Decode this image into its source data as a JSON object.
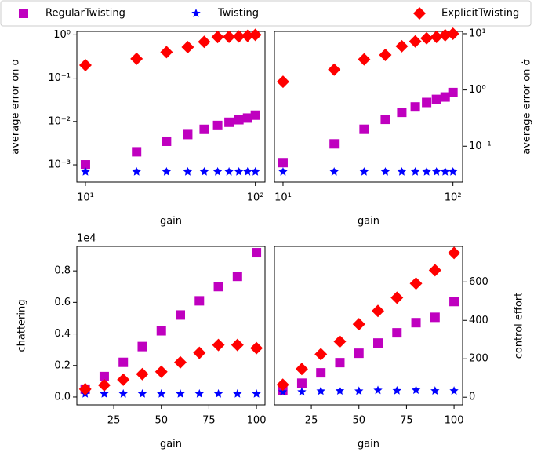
{
  "chart_data": [
    {
      "type": "scatter",
      "xlog": true,
      "ylog": true,
      "yaxis_side": "left",
      "x": [
        10,
        20,
        30,
        40,
        50,
        60,
        70,
        80,
        90,
        100
      ],
      "xlabel": "gain",
      "ylabel": "average error on σ",
      "xlim": [
        8.9,
        114
      ],
      "ylim": [
        0.0004,
        1.2
      ],
      "xticks": [
        {
          "value": 10,
          "label": "10¹"
        },
        {
          "value": 100,
          "label": "10²"
        }
      ],
      "yticks": [
        {
          "value": 0.001,
          "label": "10⁻³"
        },
        {
          "value": 0.01,
          "label": "10⁻²"
        },
        {
          "value": 0.1,
          "label": "10⁻¹"
        },
        {
          "value": 1,
          "label": "10⁰"
        }
      ],
      "series": [
        {
          "name": "RegularTwisting",
          "color": "#bf00bf",
          "marker": "square",
          "values": [
            0.001,
            0.002,
            0.0035,
            0.005,
            0.0066,
            0.0081,
            0.0096,
            0.011,
            0.012,
            0.014
          ]
        },
        {
          "name": "Twisting",
          "color": "#0000ff",
          "marker": "star",
          "values": [
            0.00069,
            0.00069,
            0.00069,
            0.00069,
            0.00069,
            0.00069,
            0.00069,
            0.00069,
            0.00069,
            0.00069
          ]
        },
        {
          "name": "ExplicitTwisting",
          "color": "#ff0000",
          "marker": "diamond",
          "values": [
            0.2,
            0.28,
            0.4,
            0.52,
            0.69,
            0.89,
            0.9,
            0.92,
            0.95,
            1.0
          ]
        }
      ]
    },
    {
      "type": "scatter",
      "xlog": true,
      "ylog": true,
      "yaxis_side": "right",
      "x": [
        10,
        20,
        30,
        40,
        50,
        60,
        70,
        80,
        90,
        100
      ],
      "xlabel": "gain",
      "ylabel": "average error on σ̇",
      "xlim": [
        8.9,
        114
      ],
      "ylim": [
        0.023,
        11
      ],
      "xticks": [
        {
          "value": 10,
          "label": "10¹"
        },
        {
          "value": 100,
          "label": "10²"
        }
      ],
      "yticks": [
        {
          "value": 0.1,
          "label": "10⁻¹"
        },
        {
          "value": 1,
          "label": "10⁰"
        },
        {
          "value": 10,
          "label": "10¹"
        }
      ],
      "series": [
        {
          "color": "#bf00bf",
          "marker": "square",
          "values": [
            0.051,
            0.11,
            0.2,
            0.3,
            0.4,
            0.5,
            0.6,
            0.68,
            0.75,
            0.9
          ]
        },
        {
          "color": "#0000ff",
          "marker": "star",
          "values": [
            0.035,
            0.035,
            0.035,
            0.035,
            0.035,
            0.035,
            0.035,
            0.035,
            0.035,
            0.035
          ]
        },
        {
          "color": "#ff0000",
          "marker": "diamond",
          "values": [
            1.4,
            2.3,
            3.5,
            4.2,
            6,
            7.3,
            8.3,
            8.8,
            9.4,
            10
          ]
        }
      ]
    },
    {
      "type": "scatter",
      "xlog": false,
      "ylog": false,
      "yaxis_side": "left",
      "x": [
        10,
        20,
        30,
        40,
        50,
        60,
        70,
        80,
        90,
        100
      ],
      "xlabel": "gain",
      "ylabel": "chattering",
      "offset_text": "1e4",
      "xlim": [
        5.6,
        104.5
      ],
      "ylim": [
        -0.05,
        0.955
      ],
      "xticks": [
        25,
        50,
        75,
        100
      ],
      "yticks": [
        {
          "value": 0,
          "label": "0.0"
        },
        0.2,
        0.4,
        0.6,
        0.8
      ],
      "series": [
        {
          "color": "#bf00bf",
          "marker": "square",
          "values": [
            0.05,
            0.13,
            0.22,
            0.32,
            0.42,
            0.52,
            0.61,
            0.7,
            0.765,
            0.915
          ]
        },
        {
          "color": "#0000ff",
          "marker": "star",
          "values": [
            0.02,
            0.02,
            0.02,
            0.02,
            0.02,
            0.02,
            0.02,
            0.02,
            0.02,
            0.02
          ]
        },
        {
          "color": "#ff0000",
          "marker": "diamond",
          "values": [
            0.05,
            0.075,
            0.11,
            0.145,
            0.16,
            0.22,
            0.28,
            0.33,
            0.33,
            0.31
          ]
        }
      ]
    },
    {
      "type": "scatter",
      "xlog": false,
      "ylog": false,
      "yaxis_side": "right",
      "x": [
        10,
        20,
        30,
        40,
        50,
        60,
        70,
        80,
        90,
        100
      ],
      "xlabel": "gain",
      "ylabel": "control effort",
      "xlim": [
        5.6,
        104.5
      ],
      "ylim": [
        -40,
        785
      ],
      "xticks": [
        25,
        50,
        75,
        100
      ],
      "yticks": [
        0,
        200,
        400,
        600
      ],
      "series": [
        {
          "color": "#bf00bf",
          "marker": "square",
          "values": [
            37,
            73,
            127,
            180,
            229,
            282,
            335,
            388,
            416,
            498
          ]
        },
        {
          "color": "#0000ff",
          "marker": "star",
          "values": [
            28,
            28,
            32,
            33,
            32,
            36,
            34,
            37,
            33,
            33
          ]
        },
        {
          "color": "#ff0000",
          "marker": "diamond",
          "values": [
            65,
            147,
            224,
            290,
            380,
            449,
            518,
            592,
            661,
            751
          ]
        }
      ]
    }
  ]
}
